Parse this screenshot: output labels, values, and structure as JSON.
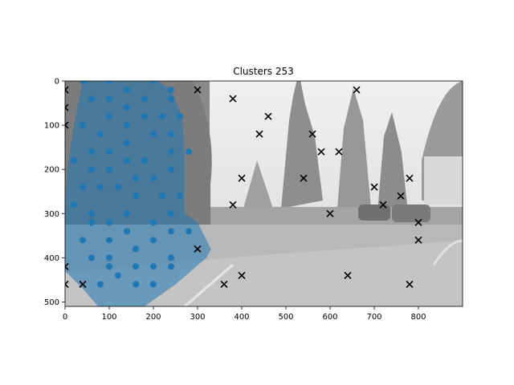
{
  "chart_data": {
    "type": "scatter",
    "title": "Clusters 253",
    "xlabel": "",
    "ylabel": "",
    "xlim": [
      0,
      900
    ],
    "ylim": [
      510,
      0
    ],
    "y_inverted": true,
    "xticks": [
      0,
      100,
      200,
      300,
      400,
      500,
      600,
      700,
      800
    ],
    "yticks": [
      0,
      100,
      200,
      300,
      400,
      500
    ],
    "grid": false,
    "background": "grayscale photo of a parking area with trees and buildings",
    "series": [
      {
        "marker": "circle",
        "color": "#1f77b4",
        "points": [
          [
            40,
            0
          ],
          [
            100,
            0
          ],
          [
            200,
            0
          ],
          [
            140,
            20
          ],
          [
            240,
            20
          ],
          [
            60,
            40
          ],
          [
            100,
            40
          ],
          [
            180,
            40
          ],
          [
            240,
            40
          ],
          [
            140,
            60
          ],
          [
            100,
            80
          ],
          [
            180,
            80
          ],
          [
            220,
            80
          ],
          [
            260,
            80
          ],
          [
            40,
            100
          ],
          [
            140,
            100
          ],
          [
            80,
            120
          ],
          [
            200,
            120
          ],
          [
            240,
            120
          ],
          [
            140,
            140
          ],
          [
            60,
            160
          ],
          [
            100,
            160
          ],
          [
            240,
            160
          ],
          [
            280,
            160
          ],
          [
            20,
            180
          ],
          [
            140,
            180
          ],
          [
            180,
            180
          ],
          [
            60,
            200
          ],
          [
            100,
            200
          ],
          [
            240,
            200
          ],
          [
            160,
            220
          ],
          [
            200,
            220
          ],
          [
            40,
            240
          ],
          [
            80,
            240
          ],
          [
            120,
            240
          ],
          [
            160,
            260
          ],
          [
            220,
            260
          ],
          [
            260,
            260
          ],
          [
            20,
            280
          ],
          [
            60,
            300
          ],
          [
            140,
            300
          ],
          [
            240,
            300
          ],
          [
            60,
            320
          ],
          [
            100,
            320
          ],
          [
            200,
            320
          ],
          [
            140,
            340
          ],
          [
            240,
            340
          ],
          [
            280,
            340
          ],
          [
            40,
            360
          ],
          [
            100,
            360
          ],
          [
            200,
            360
          ],
          [
            160,
            380
          ],
          [
            60,
            400
          ],
          [
            100,
            400
          ],
          [
            240,
            400
          ],
          [
            100,
            420
          ],
          [
            160,
            420
          ],
          [
            200,
            420
          ],
          [
            240,
            420
          ],
          [
            120,
            440
          ],
          [
            80,
            460
          ],
          [
            160,
            460
          ],
          [
            200,
            460
          ]
        ]
      },
      {
        "marker": "x",
        "color": "#000000",
        "points": [
          [
            0,
            20
          ],
          [
            0,
            60
          ],
          [
            0,
            100
          ],
          [
            0,
            420
          ],
          [
            0,
            460
          ],
          [
            40,
            460
          ],
          [
            300,
            20
          ],
          [
            300,
            380
          ],
          [
            360,
            460
          ],
          [
            380,
            40
          ],
          [
            380,
            280
          ],
          [
            400,
            220
          ],
          [
            400,
            440
          ],
          [
            440,
            120
          ],
          [
            460,
            80
          ],
          [
            540,
            220
          ],
          [
            560,
            120
          ],
          [
            580,
            160
          ],
          [
            600,
            300
          ],
          [
            620,
            160
          ],
          [
            640,
            440
          ],
          [
            660,
            20
          ],
          [
            700,
            240
          ],
          [
            720,
            280
          ],
          [
            760,
            260
          ],
          [
            780,
            220
          ],
          [
            780,
            460
          ],
          [
            800,
            320
          ],
          [
            800,
            360
          ]
        ]
      }
    ],
    "region": {
      "fill": "#1f77b4",
      "opacity": 0.55,
      "polygon": [
        [
          40,
          0
        ],
        [
          210,
          0
        ],
        [
          240,
          20
        ],
        [
          265,
          80
        ],
        [
          270,
          160
        ],
        [
          270,
          300
        ],
        [
          300,
          320
        ],
        [
          330,
          380
        ],
        [
          320,
          400
        ],
        [
          250,
          460
        ],
        [
          180,
          510
        ],
        [
          75,
          510
        ],
        [
          40,
          470
        ],
        [
          0,
          430
        ],
        [
          0,
          280
        ],
        [
          5,
          200
        ],
        [
          20,
          100
        ]
      ]
    }
  }
}
